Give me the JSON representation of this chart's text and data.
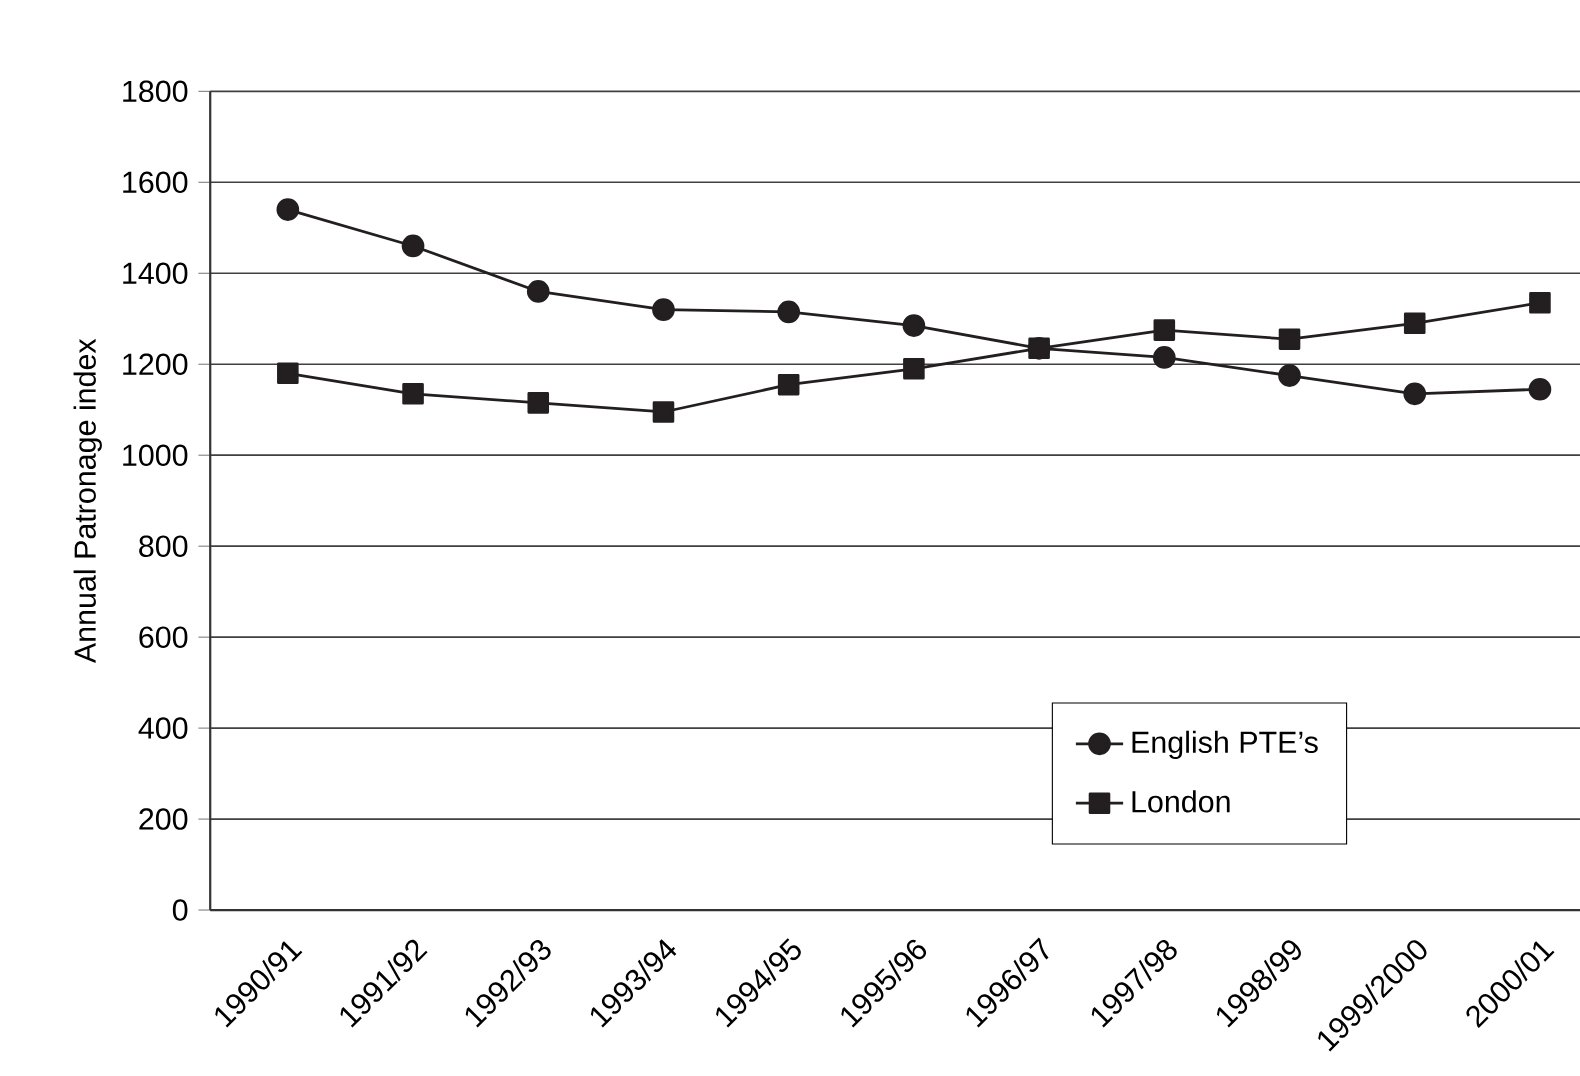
{
  "chart_data": {
    "type": "line",
    "ylabel": "Annual Patronage index",
    "categories": [
      "1990/91",
      "1991/92",
      "1992/93",
      "1993/94",
      "1994/95",
      "1995/96",
      "1996/97",
      "1997/98",
      "1998/99",
      "1999/2000",
      "2000/01"
    ],
    "series": [
      {
        "name": "English PTE’s",
        "color": "#231f20",
        "marker": "circle",
        "values": [
          1540,
          1460,
          1360,
          1320,
          1315,
          1285,
          1235,
          1215,
          1175,
          1135,
          1145
        ]
      },
      {
        "name": "London",
        "color": "#231f20",
        "marker": "square",
        "values": [
          1180,
          1135,
          1115,
          1095,
          1155,
          1190,
          1235,
          1275,
          1255,
          1290,
          1335
        ]
      }
    ],
    "ylim": [
      0,
      1800
    ],
    "yticks": [
      0,
      200,
      400,
      600,
      800,
      1000,
      1200,
      1400,
      1600,
      1800
    ],
    "grid": "y",
    "legend": "bottom right",
    "line_style": "solid"
  }
}
